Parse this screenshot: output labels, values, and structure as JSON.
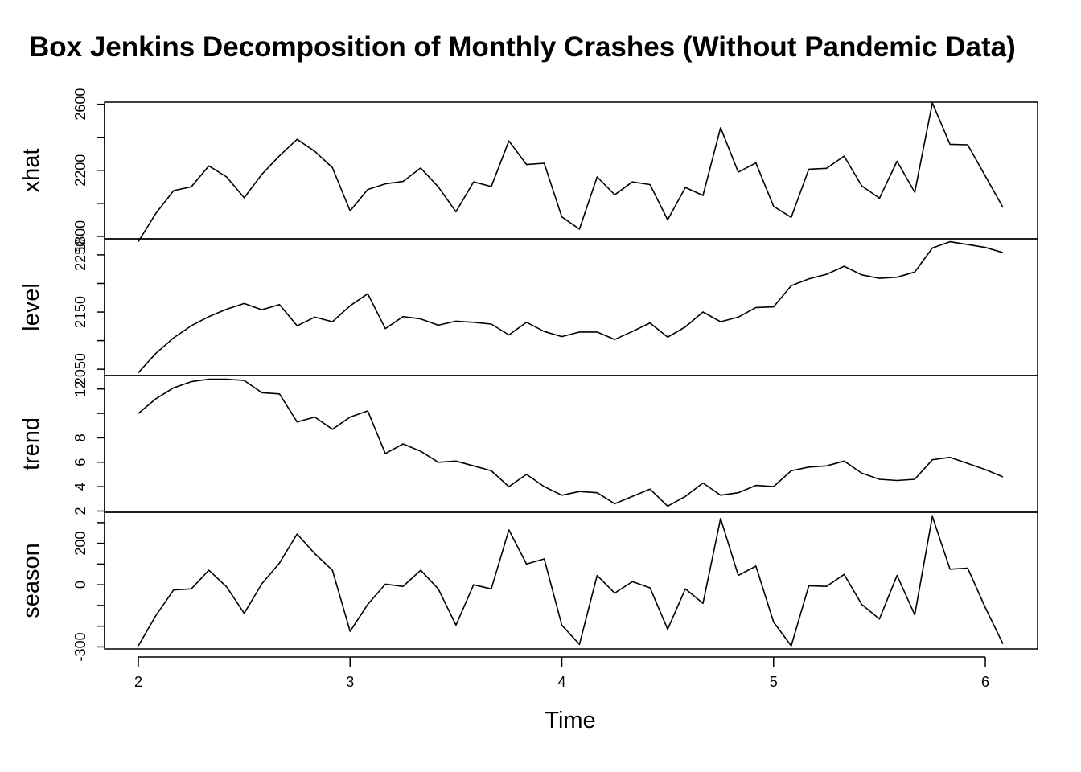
{
  "chart_data": {
    "type": "line",
    "title": "Box Jenkins Decomposition of Monthly Crashes (Without Pandemic Data)",
    "xlabel": "Time",
    "xlim": [
      2,
      6.0833
    ],
    "x_ticks": [
      2,
      3,
      4,
      5,
      6
    ],
    "x": [
      2.0,
      2.0833,
      2.1667,
      2.25,
      2.3333,
      2.4167,
      2.5,
      2.5833,
      2.6667,
      2.75,
      2.8333,
      2.9167,
      3.0,
      3.0833,
      3.1667,
      3.25,
      3.3333,
      3.4167,
      3.5,
      3.5833,
      3.6667,
      3.75,
      3.8333,
      3.9167,
      4.0,
      4.0833,
      4.1667,
      4.25,
      4.3333,
      4.4167,
      4.5,
      4.5833,
      4.6667,
      4.75,
      4.8333,
      4.9167,
      5.0,
      5.0833,
      5.1667,
      5.25,
      5.3333,
      5.4167,
      5.5,
      5.5833,
      5.6667,
      5.75,
      5.8333,
      5.9167,
      6.0,
      6.0833
    ],
    "panels": [
      {
        "name": "xhat",
        "ylabel": "xhat",
        "ylim": [
          1785,
          2613
        ],
        "y_ticks": [
          1800,
          2000,
          2200,
          2400,
          2600
        ],
        "y_tick_labels": [
          "1800",
          "",
          "2200",
          "",
          "2600"
        ],
        "values": [
          1768,
          1940,
          2077,
          2100,
          2227,
          2160,
          2034,
          2176,
          2288,
          2388,
          2315,
          2216,
          1954,
          2084,
          2118,
          2133,
          2214,
          2100,
          1949,
          2130,
          2102,
          2378,
          2235,
          2243,
          1918,
          1844,
          2160,
          2052,
          2130,
          2114,
          1900,
          2096,
          2048,
          2458,
          2189,
          2245,
          1982,
          1915,
          2207,
          2212,
          2286,
          2106,
          2031,
          2255,
          2067,
          2608,
          2358,
          2355,
          2166,
          1976
        ]
      },
      {
        "name": "level",
        "ylabel": "level",
        "ylim": [
          2039,
          2278
        ],
        "y_ticks": [
          2050,
          2100,
          2150,
          2200,
          2250
        ],
        "y_tick_labels": [
          "2050",
          "",
          "2150",
          "",
          "2250"
        ],
        "values": [
          2044,
          2078,
          2105,
          2126,
          2142,
          2155,
          2165,
          2154,
          2163,
          2126,
          2141,
          2133,
          2161,
          2182,
          2121,
          2142,
          2138,
          2127,
          2134,
          2132,
          2129,
          2110,
          2132,
          2116,
          2107,
          2115,
          2115,
          2102,
          2116,
          2131,
          2106,
          2124,
          2150,
          2133,
          2141,
          2158,
          2159,
          2196,
          2208,
          2216,
          2230,
          2215,
          2209,
          2211,
          2220,
          2262,
          2273,
          2268,
          2263,
          2254
        ]
      },
      {
        "name": "trend",
        "ylabel": "trend",
        "ylim": [
          1.9,
          13.1
        ],
        "y_ticks": [
          2,
          4,
          6,
          8,
          10,
          12
        ],
        "y_tick_labels": [
          "2",
          "4",
          "6",
          "8",
          "",
          "12"
        ],
        "values": [
          10.0,
          11.2,
          12.1,
          12.6,
          12.8,
          12.8,
          12.7,
          11.7,
          11.6,
          9.3,
          9.7,
          8.7,
          9.7,
          10.2,
          6.7,
          7.5,
          6.9,
          6.0,
          6.1,
          5.7,
          5.3,
          4.0,
          5.0,
          4.0,
          3.3,
          3.6,
          3.5,
          2.6,
          3.2,
          3.8,
          2.4,
          3.2,
          4.3,
          3.3,
          3.5,
          4.1,
          4.0,
          5.3,
          5.6,
          5.7,
          6.1,
          5.1,
          4.6,
          4.5,
          4.6,
          6.2,
          6.4,
          5.9,
          5.4,
          4.8
        ]
      },
      {
        "name": "season",
        "ylabel": "season",
        "ylim": [
          -310,
          350
        ],
        "y_ticks": [
          -300,
          -200,
          -100,
          0,
          100,
          200,
          300
        ],
        "y_tick_labels": [
          "-300",
          "",
          "",
          "0",
          "",
          "200",
          ""
        ],
        "values": [
          -295,
          -148,
          -25,
          -20,
          70,
          -10,
          -138,
          5,
          105,
          245,
          150,
          70,
          -225,
          -95,
          3,
          -8,
          70,
          -20,
          -195,
          0,
          -20,
          265,
          100,
          125,
          -195,
          -288,
          45,
          -40,
          15,
          -15,
          -215,
          -20,
          -90,
          320,
          45,
          90,
          -180,
          -295,
          -5,
          -8,
          50,
          -95,
          -165,
          45,
          -145,
          330,
          75,
          80,
          -110,
          -285
        ]
      }
    ]
  }
}
